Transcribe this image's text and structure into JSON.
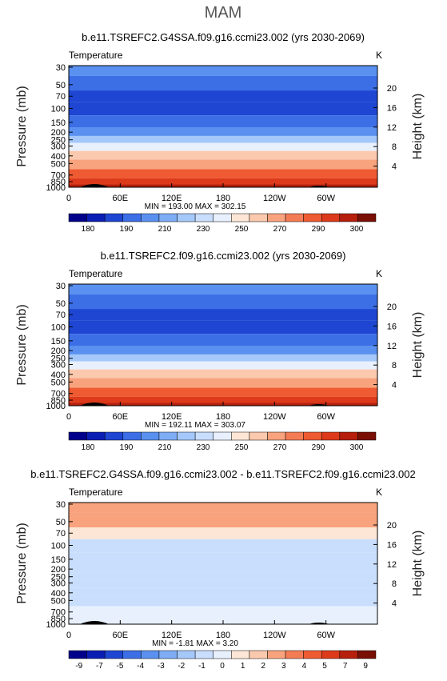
{
  "page": {
    "season": "MAM"
  },
  "colors": {
    "levels": [
      "#00008b",
      "#0a1eb4",
      "#1e46d2",
      "#3c6ee6",
      "#5a91f0",
      "#7eacf5",
      "#a5c8fa",
      "#c9defc",
      "#e8f0fd",
      "#fde6d6",
      "#fbc9ad",
      "#f8a37e",
      "#f47c55",
      "#ee5a32",
      "#dc3a1a",
      "#b51f0c",
      "#7a0f05"
    ],
    "topo": "#000000"
  },
  "chart_data": [
    {
      "type": "heatmap",
      "title": "b.e11.TSREFC2.G4SSA.f09.g16.ccmi23.002 (yrs 2030-2069)",
      "left_label": "Temperature",
      "units": "K",
      "stats": "MIN = 193.00   MAX = 302.15",
      "ylabel": "Pressure (mb)",
      "ylabel_right": "Height (km)",
      "x_ticks": [
        "0",
        "60E",
        "120E",
        "180",
        "120W",
        "60W"
      ],
      "y_ticks": [
        "30",
        "50",
        "70",
        "100",
        "150",
        "200",
        "250",
        "300",
        "400",
        "500",
        "700",
        "850",
        "1000"
      ],
      "right_ticks": [
        "20",
        "16",
        "12",
        "8",
        "4"
      ],
      "colorbar_labels": [
        "180",
        "190",
        "210",
        "230",
        "250",
        "270",
        "290",
        "300"
      ],
      "bands": [
        {
          "p": 30,
          "level": 4
        },
        {
          "p": 50,
          "level": 3
        },
        {
          "p": 70,
          "level": 2
        },
        {
          "p": 100,
          "level": 2
        },
        {
          "p": 150,
          "level": 3
        },
        {
          "p": 200,
          "level": 4
        },
        {
          "p": 250,
          "level": 6
        },
        {
          "p": 300,
          "level": 8
        },
        {
          "p": 400,
          "level": 10
        },
        {
          "p": 500,
          "level": 11
        },
        {
          "p": 700,
          "level": 13
        },
        {
          "p": 850,
          "level": 14
        },
        {
          "p": 1000,
          "level": 15
        }
      ]
    },
    {
      "type": "heatmap",
      "title": "b.e11.TSREFC2.f09.g16.ccmi23.002 (yrs 2030-2069)",
      "left_label": "Temperature",
      "units": "K",
      "stats": "MIN = 192.11   MAX = 303.07",
      "ylabel": "Pressure (mb)",
      "ylabel_right": "Height (km)",
      "x_ticks": [
        "0",
        "60E",
        "120E",
        "180",
        "120W",
        "60W"
      ],
      "y_ticks": [
        "30",
        "50",
        "70",
        "100",
        "150",
        "200",
        "250",
        "300",
        "400",
        "500",
        "700",
        "850",
        "1000"
      ],
      "right_ticks": [
        "20",
        "16",
        "12",
        "8",
        "4"
      ],
      "colorbar_labels": [
        "180",
        "190",
        "210",
        "230",
        "250",
        "270",
        "290",
        "300"
      ],
      "bands": [
        {
          "p": 30,
          "level": 4
        },
        {
          "p": 50,
          "level": 3
        },
        {
          "p": 70,
          "level": 2
        },
        {
          "p": 100,
          "level": 2
        },
        {
          "p": 150,
          "level": 3
        },
        {
          "p": 200,
          "level": 4
        },
        {
          "p": 250,
          "level": 6
        },
        {
          "p": 300,
          "level": 8
        },
        {
          "p": 400,
          "level": 10
        },
        {
          "p": 500,
          "level": 11
        },
        {
          "p": 700,
          "level": 13
        },
        {
          "p": 850,
          "level": 14
        },
        {
          "p": 1000,
          "level": 15
        }
      ]
    },
    {
      "type": "heatmap",
      "title": "b.e11.TSREFC2.G4SSA.f09.g16.ccmi23.002 - b.e11.TSREFC2.f09.g16.ccmi23.002",
      "left_label": "Temperature",
      "units": "K",
      "stats": "MIN =   -1.81   MAX =    3.20",
      "ylabel": "Pressure (mb)",
      "ylabel_right": "Height (km)",
      "x_ticks": [
        "0",
        "60E",
        "120E",
        "180",
        "120W",
        "60W"
      ],
      "y_ticks": [
        "30",
        "50",
        "70",
        "100",
        "150",
        "200",
        "250",
        "300",
        "400",
        "500",
        "700",
        "850",
        "1000"
      ],
      "right_ticks": [
        "20",
        "16",
        "12",
        "8",
        "4"
      ],
      "colorbar_labels": [
        "-9",
        "-7",
        "-5",
        "-4",
        "-3",
        "-2",
        "-1",
        "0",
        "1",
        "2",
        "3",
        "4",
        "5",
        "7",
        "9"
      ],
      "bands": [
        {
          "p": 30,
          "level": 11
        },
        {
          "p": 50,
          "level": 11
        },
        {
          "p": 70,
          "level": 9
        },
        {
          "p": 100,
          "level": 7
        },
        {
          "p": 150,
          "level": 7
        },
        {
          "p": 200,
          "level": 7
        },
        {
          "p": 250,
          "level": 7
        },
        {
          "p": 300,
          "level": 7
        },
        {
          "p": 400,
          "level": 7
        },
        {
          "p": 500,
          "level": 7
        },
        {
          "p": 700,
          "level": 8
        },
        {
          "p": 850,
          "level": 8
        },
        {
          "p": 1000,
          "level": 8
        }
      ]
    }
  ]
}
